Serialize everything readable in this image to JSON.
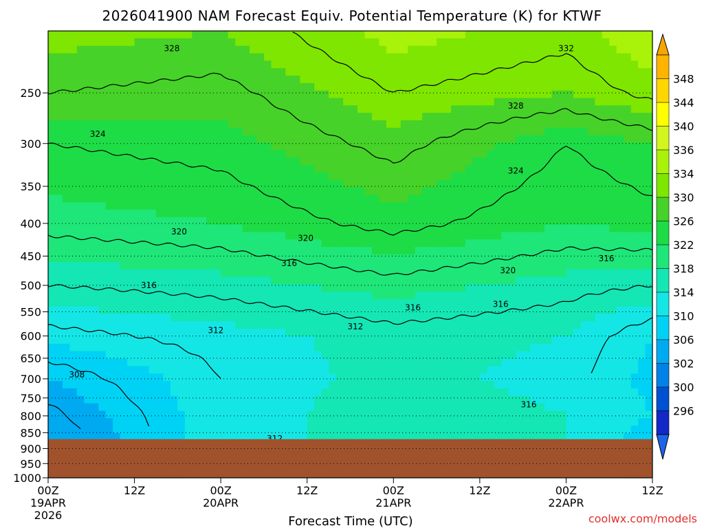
{
  "chart_data": {
    "type": "heatmap",
    "title": "2026041900 NAM Forecast Equiv. Potential Temperature (K) for KTWF",
    "xlabel": "Forecast Time (UTC)",
    "ylabel": "",
    "y_scale": "log-pressure (hPa), decreasing upward",
    "ylim": [
      1000,
      200
    ],
    "y_ticks": [
      250,
      300,
      350,
      400,
      450,
      500,
      550,
      600,
      650,
      700,
      750,
      800,
      850,
      900,
      950,
      1000
    ],
    "x_ticks": [
      {
        "hour": 0,
        "label": "00Z",
        "label2": "19APR",
        "label3": "2026"
      },
      {
        "hour": 12,
        "label": "12Z",
        "label2": "",
        "label3": ""
      },
      {
        "hour": 24,
        "label": "00Z",
        "label2": "20APR",
        "label3": ""
      },
      {
        "hour": 36,
        "label": "12Z",
        "label2": "",
        "label3": ""
      },
      {
        "hour": 48,
        "label": "00Z",
        "label2": "21APR",
        "label3": ""
      },
      {
        "hour": 60,
        "label": "12Z",
        "label2": "",
        "label3": ""
      },
      {
        "hour": 72,
        "label": "00Z",
        "label2": "22APR",
        "label3": ""
      },
      {
        "hour": 84,
        "label": "12Z",
        "label2": "",
        "label3": ""
      }
    ],
    "xlim": [
      0,
      84
    ],
    "grid": "dotted horizontal lines at pressure levels",
    "colorbar": {
      "position": "right",
      "labels": [
        348,
        344,
        340,
        336,
        334,
        330,
        326,
        322,
        318,
        314,
        310,
        306,
        302,
        300,
        296
      ],
      "colors": [
        "#ffb400",
        "#ffd700",
        "#ffff00",
        "#d2f51e",
        "#a9f20a",
        "#7ee600",
        "#46d228",
        "#1edc46",
        "#1ee678",
        "#14e6b4",
        "#14e6e6",
        "#00d2f5",
        "#00aaf0",
        "#0082e6",
        "#0050d2",
        "#1428c8"
      ],
      "arrow_top_color": "#f5a700",
      "arrow_bottom_color": "#1e64e6"
    },
    "terrain": {
      "color": "#a0522d",
      "surface_pressure_hpa": 870
    },
    "isotherm_values_k": [
      300,
      304,
      308,
      312,
      316,
      320,
      324,
      328,
      332,
      336,
      340,
      344,
      348
    ],
    "contour_labels": [
      {
        "value": 328,
        "hour": 17.2,
        "p": 213
      },
      {
        "value": 332,
        "hour": 72.0,
        "p": 213
      },
      {
        "value": 328,
        "hour": 65.0,
        "p": 262
      },
      {
        "value": 324,
        "hour": 6.9,
        "p": 290
      },
      {
        "value": 324,
        "hour": 65.0,
        "p": 331
      },
      {
        "value": 320,
        "hour": 18.2,
        "p": 412
      },
      {
        "value": 320,
        "hour": 35.8,
        "p": 422
      },
      {
        "value": 316,
        "hour": 33.5,
        "p": 462
      },
      {
        "value": 316,
        "hour": 77.6,
        "p": 454
      },
      {
        "value": 320,
        "hour": 63.9,
        "p": 474
      },
      {
        "value": 316,
        "hour": 14.0,
        "p": 500
      },
      {
        "value": 316,
        "hour": 50.7,
        "p": 542
      },
      {
        "value": 316,
        "hour": 62.9,
        "p": 535
      },
      {
        "value": 312,
        "hour": 23.3,
        "p": 588
      },
      {
        "value": 312,
        "hour": 42.7,
        "p": 580
      },
      {
        "value": 308,
        "hour": 4.0,
        "p": 690
      },
      {
        "value": 316,
        "hour": 66.8,
        "p": 768
      },
      {
        "value": 312,
        "hour": 31.5,
        "p": 868
      }
    ],
    "fields": [
      {
        "level": 250,
        "values_by_hour": [
          {
            "hour": 0,
            "k": 328
          },
          {
            "hour": 24,
            "k": 327
          },
          {
            "hour": 48,
            "k": 332
          },
          {
            "hour": 72,
            "k": 330
          },
          {
            "hour": 84,
            "k": 333
          }
        ]
      },
      {
        "level": 300,
        "values_by_hour": [
          {
            "hour": 0,
            "k": 324
          },
          {
            "hour": 24,
            "k": 325
          },
          {
            "hour": 48,
            "k": 329
          },
          {
            "hour": 72,
            "k": 324
          },
          {
            "hour": 84,
            "k": 326
          }
        ]
      },
      {
        "level": 400,
        "values_by_hour": [
          {
            "hour": 0,
            "k": 321
          },
          {
            "hour": 24,
            "k": 322
          },
          {
            "hour": 48,
            "k": 325
          },
          {
            "hour": 72,
            "k": 322
          },
          {
            "hour": 84,
            "k": 323
          }
        ]
      },
      {
        "level": 500,
        "values_by_hour": [
          {
            "hour": 0,
            "k": 316
          },
          {
            "hour": 24,
            "k": 317
          },
          {
            "hour": 48,
            "k": 319
          },
          {
            "hour": 72,
            "k": 317
          },
          {
            "hour": 84,
            "k": 316
          }
        ]
      },
      {
        "level": 600,
        "values_by_hour": [
          {
            "hour": 0,
            "k": 311
          },
          {
            "hour": 24,
            "k": 313
          },
          {
            "hour": 48,
            "k": 315
          },
          {
            "hour": 72,
            "k": 314
          },
          {
            "hour": 84,
            "k": 310
          }
        ]
      },
      {
        "level": 700,
        "values_by_hour": [
          {
            "hour": 0,
            "k": 306
          },
          {
            "hour": 24,
            "k": 312
          },
          {
            "hour": 48,
            "k": 315
          },
          {
            "hour": 72,
            "k": 313
          },
          {
            "hour": 84,
            "k": 309
          }
        ]
      },
      {
        "level": 800,
        "values_by_hour": [
          {
            "hour": 0,
            "k": 303
          },
          {
            "hour": 24,
            "k": 312
          },
          {
            "hour": 48,
            "k": 316
          },
          {
            "hour": 72,
            "k": 314
          },
          {
            "hour": 84,
            "k": 310
          }
        ]
      },
      {
        "level": 850,
        "values_by_hour": [
          {
            "hour": 0,
            "k": 302
          },
          {
            "hour": 24,
            "k": 312
          },
          {
            "hour": 48,
            "k": 316
          },
          {
            "hour": 72,
            "k": 314
          },
          {
            "hour": 84,
            "k": 308
          }
        ]
      }
    ]
  },
  "credit": "coolwx.com/models"
}
